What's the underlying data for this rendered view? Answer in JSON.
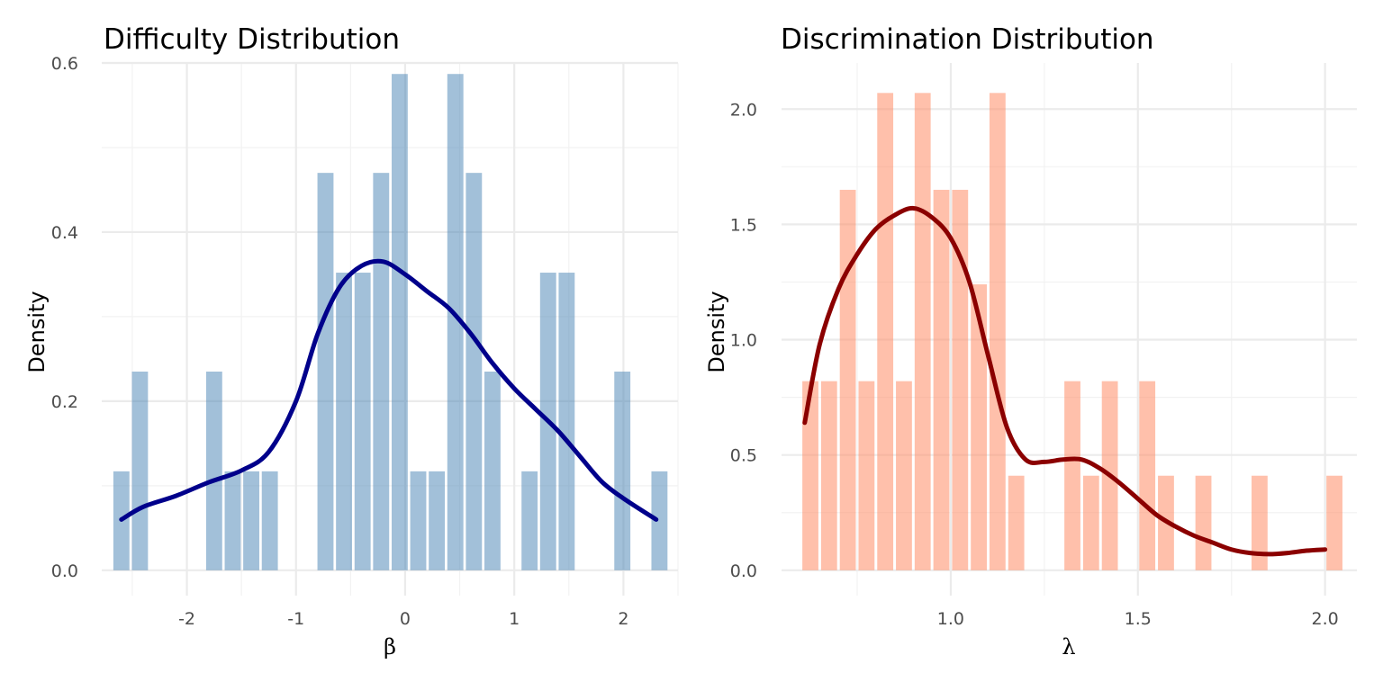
{
  "chart_data": [
    {
      "type": "bar",
      "title": "Difficulty Distribution",
      "xlabel": "β",
      "ylabel": "Density",
      "xlim": [
        -2.78,
        2.5
      ],
      "ylim": [
        -0.03,
        0.6
      ],
      "xticks": [
        -2,
        -1,
        0,
        1,
        2
      ],
      "xtick_labels": [
        "-2",
        "-1",
        "0",
        "1",
        "2"
      ],
      "yticks": [
        0.0,
        0.2,
        0.4,
        0.6
      ],
      "ytick_labels": [
        "0.0",
        "0.2",
        "0.4",
        "0.6"
      ],
      "grid": true,
      "bar_color": "#4682b4",
      "bar_opacity": 0.5,
      "curve_color": "#00008b",
      "bin_width": 0.172,
      "bins": [
        {
          "x": -2.6,
          "y": 0.117
        },
        {
          "x": -2.43,
          "y": 0.235
        },
        {
          "x": -1.75,
          "y": 0.235
        },
        {
          "x": -1.58,
          "y": 0.117
        },
        {
          "x": -1.41,
          "y": 0.117
        },
        {
          "x": -1.24,
          "y": 0.117
        },
        {
          "x": -0.73,
          "y": 0.47
        },
        {
          "x": -0.56,
          "y": 0.352
        },
        {
          "x": -0.39,
          "y": 0.352
        },
        {
          "x": -0.22,
          "y": 0.47
        },
        {
          "x": -0.05,
          "y": 0.587
        },
        {
          "x": 0.12,
          "y": 0.117
        },
        {
          "x": 0.29,
          "y": 0.117
        },
        {
          "x": 0.46,
          "y": 0.587
        },
        {
          "x": 0.63,
          "y": 0.47
        },
        {
          "x": 0.8,
          "y": 0.235
        },
        {
          "x": 1.14,
          "y": 0.117
        },
        {
          "x": 1.31,
          "y": 0.352
        },
        {
          "x": 1.48,
          "y": 0.352
        },
        {
          "x": 1.99,
          "y": 0.235
        },
        {
          "x": 2.33,
          "y": 0.117
        }
      ],
      "density_curve": {
        "x": [
          -2.6,
          -2.4,
          -2.1,
          -1.8,
          -1.5,
          -1.25,
          -1.0,
          -0.8,
          -0.6,
          -0.4,
          -0.2,
          0.0,
          0.2,
          0.4,
          0.6,
          0.8,
          1.0,
          1.2,
          1.4,
          1.6,
          1.8,
          2.0,
          2.3
        ],
        "y": [
          0.06,
          0.075,
          0.088,
          0.104,
          0.118,
          0.14,
          0.2,
          0.28,
          0.335,
          0.36,
          0.365,
          0.35,
          0.33,
          0.31,
          0.28,
          0.245,
          0.215,
          0.19,
          0.165,
          0.135,
          0.105,
          0.085,
          0.06
        ]
      }
    },
    {
      "type": "bar",
      "title": "Discrimination Distribution",
      "xlabel": "λ",
      "ylabel": "Density",
      "xlim": [
        0.548,
        2.085
      ],
      "ylim": [
        -0.11,
        2.2
      ],
      "xticks": [
        1.0,
        1.5,
        2.0
      ],
      "xtick_labels": [
        "1.0",
        "1.5",
        "2.0"
      ],
      "yticks": [
        0.0,
        0.5,
        1.0,
        1.5,
        2.0
      ],
      "ytick_labels": [
        "0.0",
        "0.5",
        "1.0",
        "1.5",
        "2.0"
      ],
      "grid": true,
      "bar_color": "#ff8c66",
      "bar_opacity": 0.55,
      "curve_color": "#8b0000",
      "bin_width": 0.05,
      "bins": [
        {
          "x": 0.625,
          "y": 0.82
        },
        {
          "x": 0.675,
          "y": 0.82
        },
        {
          "x": 0.725,
          "y": 1.65
        },
        {
          "x": 0.775,
          "y": 0.82
        },
        {
          "x": 0.825,
          "y": 2.07
        },
        {
          "x": 0.875,
          "y": 0.82
        },
        {
          "x": 0.925,
          "y": 2.07
        },
        {
          "x": 0.975,
          "y": 1.65
        },
        {
          "x": 1.025,
          "y": 1.65
        },
        {
          "x": 1.075,
          "y": 1.24
        },
        {
          "x": 1.125,
          "y": 2.07
        },
        {
          "x": 1.175,
          "y": 0.41
        },
        {
          "x": 1.325,
          "y": 0.82
        },
        {
          "x": 1.375,
          "y": 0.41
        },
        {
          "x": 1.425,
          "y": 0.82
        },
        {
          "x": 1.525,
          "y": 0.82
        },
        {
          "x": 1.575,
          "y": 0.41
        },
        {
          "x": 1.675,
          "y": 0.41
        },
        {
          "x": 1.825,
          "y": 0.41
        },
        {
          "x": 2.025,
          "y": 0.41
        }
      ],
      "density_curve": {
        "x": [
          0.61,
          0.65,
          0.7,
          0.75,
          0.8,
          0.85,
          0.9,
          0.95,
          1.0,
          1.05,
          1.1,
          1.15,
          1.2,
          1.25,
          1.3,
          1.35,
          1.4,
          1.45,
          1.5,
          1.55,
          1.6,
          1.65,
          1.7,
          1.75,
          1.8,
          1.85,
          1.9,
          1.95,
          2.0
        ],
        "y": [
          0.64,
          0.98,
          1.22,
          1.37,
          1.48,
          1.54,
          1.57,
          1.53,
          1.44,
          1.25,
          0.93,
          0.62,
          0.48,
          0.47,
          0.48,
          0.48,
          0.44,
          0.38,
          0.31,
          0.24,
          0.19,
          0.15,
          0.12,
          0.09,
          0.075,
          0.07,
          0.075,
          0.085,
          0.09
        ]
      }
    }
  ]
}
